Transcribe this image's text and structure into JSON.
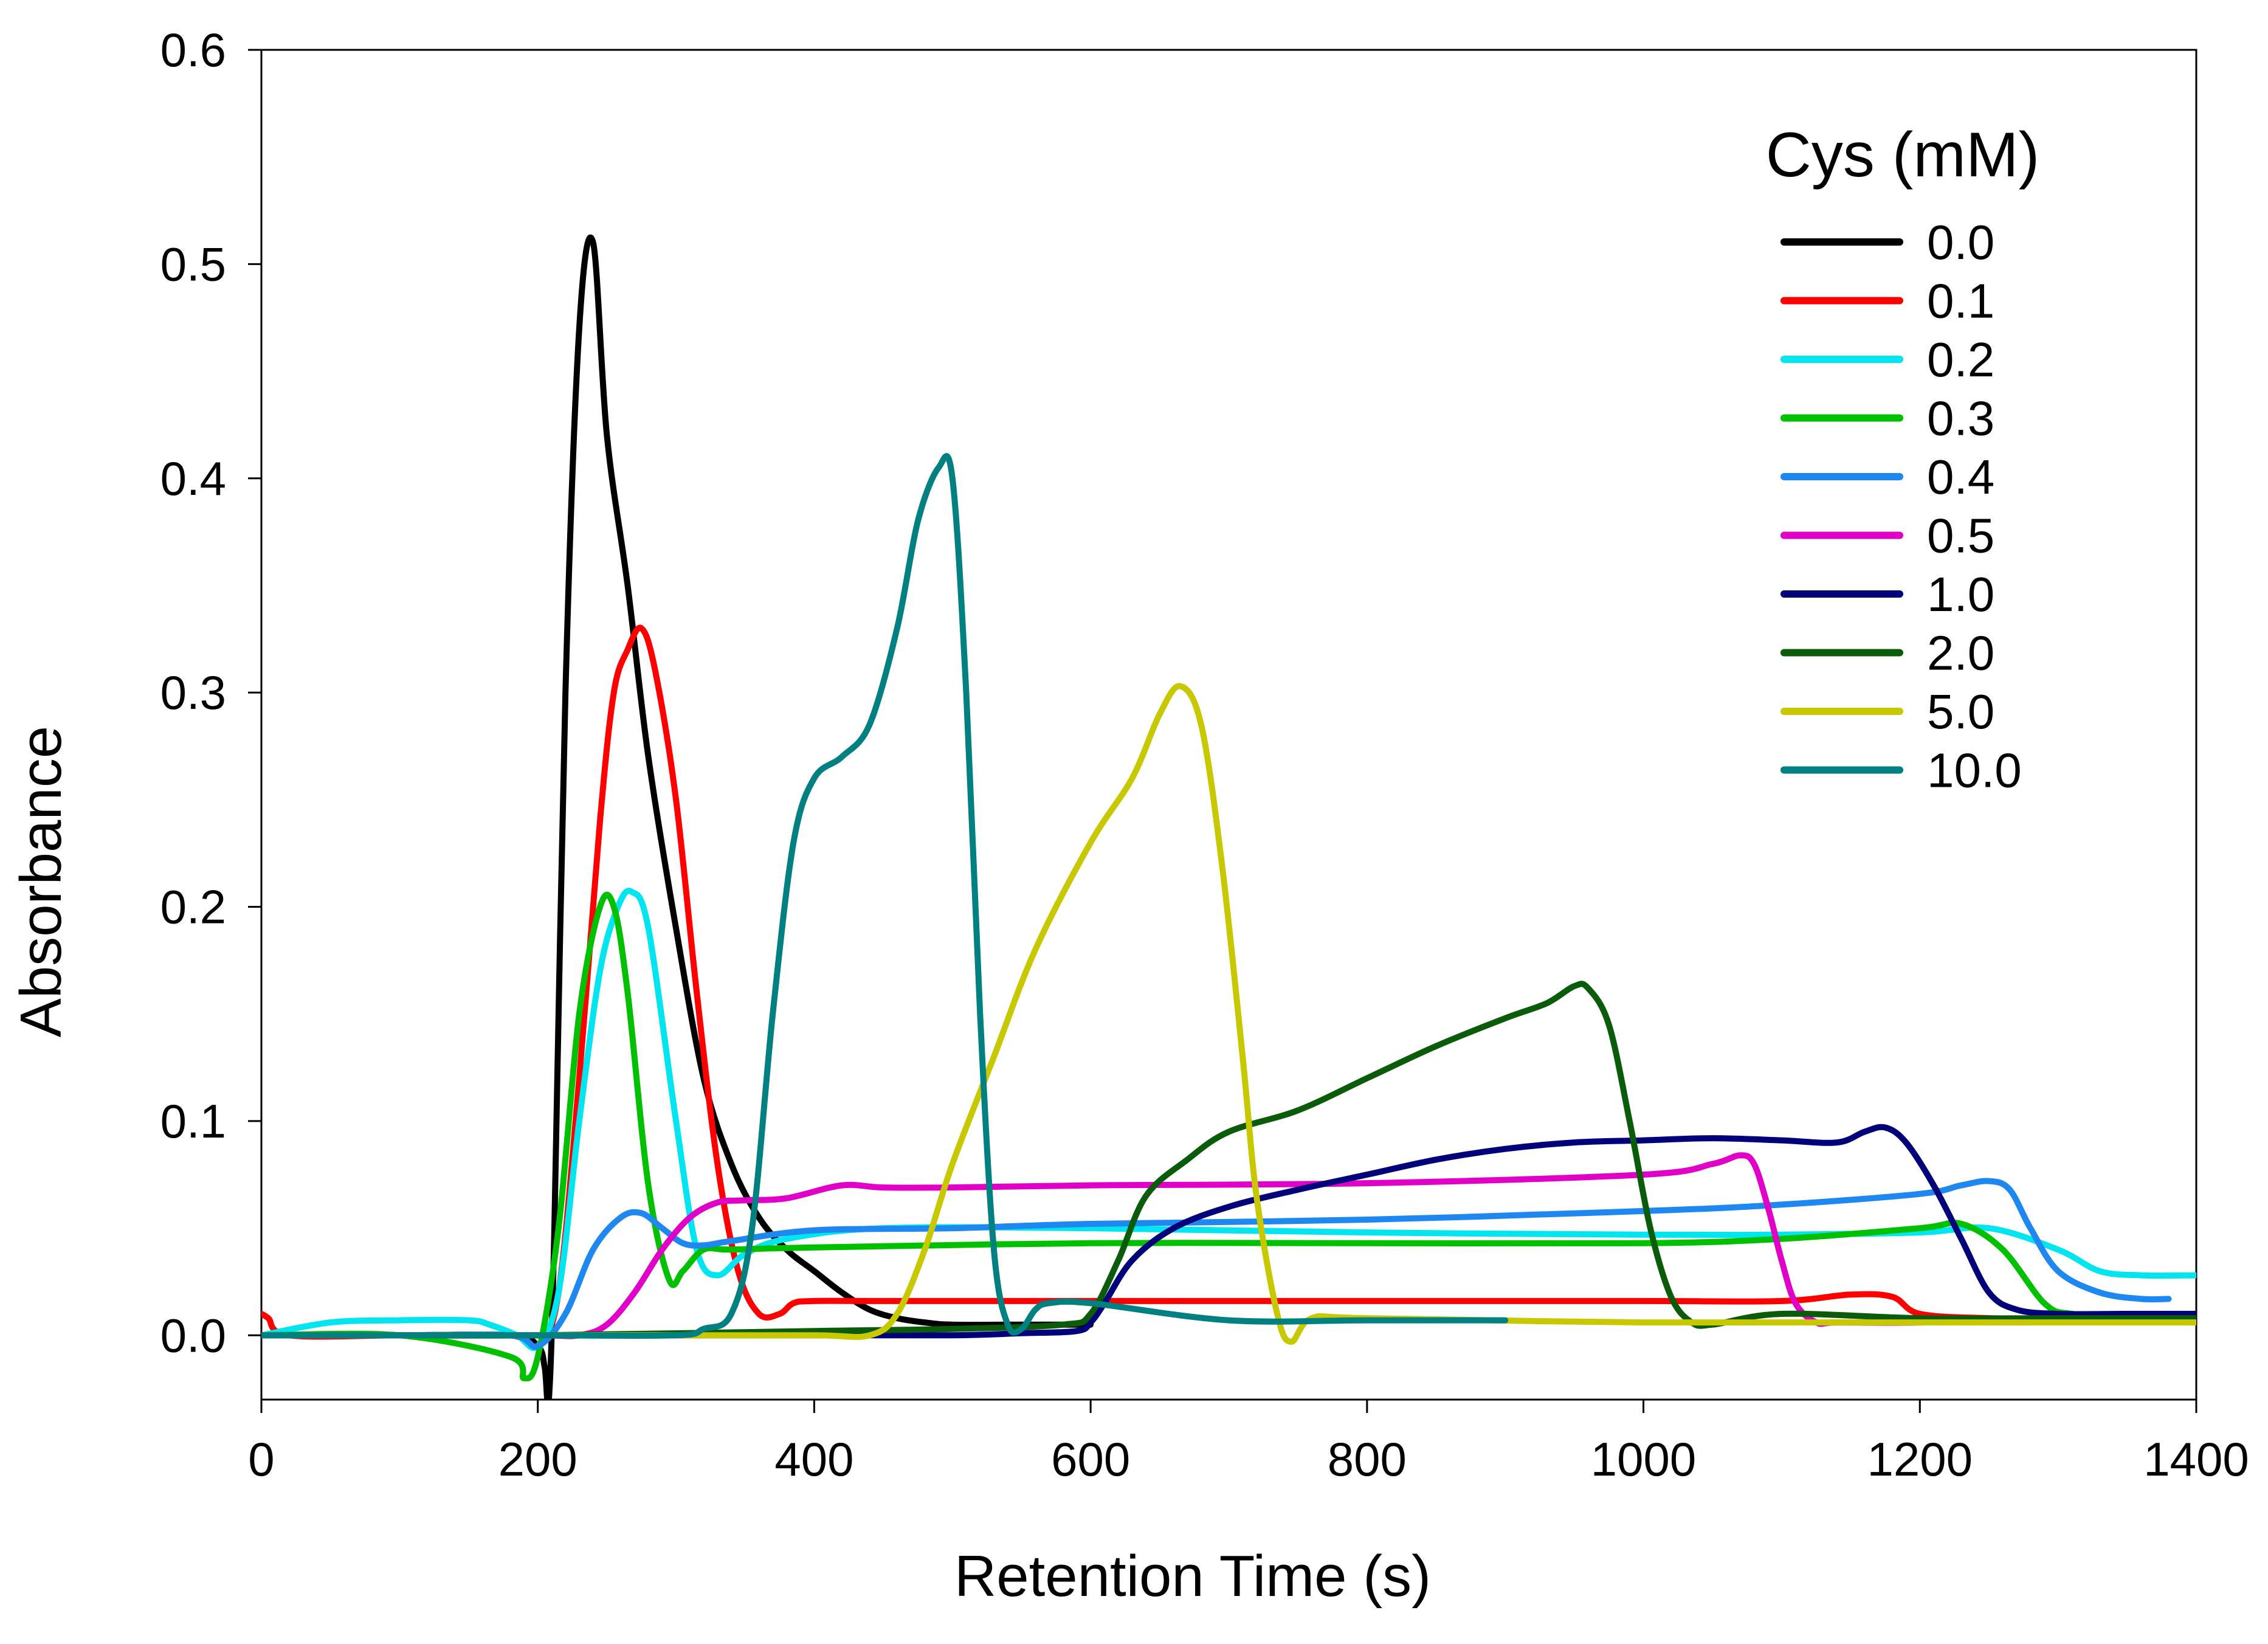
{
  "chart_data": {
    "type": "line",
    "title": "",
    "xlabel": "Retention Time (s)",
    "ylabel": "Absorbance",
    "xlim": [
      0,
      1400
    ],
    "ylim": [
      -0.03,
      0.6
    ],
    "xticks": [
      0,
      200,
      400,
      600,
      800,
      1000,
      1200,
      1400
    ],
    "xtick_labels": [
      "0",
      "200",
      "400",
      "600",
      "800",
      "1000",
      "1200",
      "1400"
    ],
    "yticks": [
      0.0,
      0.1,
      0.2,
      0.3,
      0.4,
      0.5,
      0.6
    ],
    "ytick_labels": [
      "0.0",
      "0.1",
      "0.2",
      "0.3",
      "0.4",
      "0.5",
      "0.6"
    ],
    "grid": false,
    "legend": {
      "title": "Cys (mM)",
      "position": "top-right"
    },
    "series": [
      {
        "name": "0.0",
        "color": "#000000",
        "x": [
          0,
          100,
          180,
          200,
          205,
          208,
          212,
          220,
          230,
          240,
          250,
          265,
          280,
          300,
          320,
          340,
          360,
          380,
          400,
          420,
          440,
          460,
          480,
          500,
          550,
          600
        ],
        "y": [
          0.0,
          0.0,
          0.0,
          -0.005,
          -0.015,
          -0.03,
          0.05,
          0.3,
          0.47,
          0.51,
          0.42,
          0.35,
          0.27,
          0.19,
          0.12,
          0.08,
          0.055,
          0.04,
          0.03,
          0.02,
          0.012,
          0.008,
          0.006,
          0.005,
          0.005,
          0.005
        ]
      },
      {
        "name": "0.1",
        "color": "#ff0000",
        "x": [
          0,
          5,
          20,
          100,
          180,
          200,
          215,
          230,
          245,
          255,
          265,
          275,
          285,
          300,
          315,
          330,
          345,
          360,
          375,
          385,
          400,
          450,
          600,
          800,
          1000,
          1100,
          1150,
          1180,
          1200,
          1250,
          1300,
          1350,
          1400
        ],
        "y": [
          0.01,
          0.008,
          0.0,
          0.0,
          0.0,
          -0.005,
          0.02,
          0.12,
          0.24,
          0.3,
          0.32,
          0.33,
          0.31,
          0.25,
          0.16,
          0.08,
          0.03,
          0.01,
          0.01,
          0.015,
          0.016,
          0.016,
          0.016,
          0.016,
          0.016,
          0.016,
          0.019,
          0.018,
          0.01,
          0.008,
          0.008,
          0.008,
          0.008
        ]
      },
      {
        "name": "0.2",
        "color": "#00e5f0",
        "x": [
          0,
          50,
          100,
          150,
          165,
          185,
          200,
          215,
          230,
          245,
          258,
          268,
          280,
          300,
          315,
          330,
          350,
          380,
          450,
          600,
          800,
          1000,
          1100,
          1200,
          1250,
          1300,
          1330,
          1360,
          1400
        ],
        "y": [
          0.0,
          0.006,
          0.007,
          0.007,
          0.005,
          0.0,
          -0.005,
          0.02,
          0.1,
          0.17,
          0.2,
          0.207,
          0.19,
          0.1,
          0.04,
          0.028,
          0.038,
          0.045,
          0.05,
          0.05,
          0.048,
          0.047,
          0.047,
          0.048,
          0.05,
          0.04,
          0.03,
          0.028,
          0.028
        ]
      },
      {
        "name": "0.3",
        "color": "#00c000",
        "x": [
          0,
          100,
          180,
          190,
          200,
          215,
          230,
          245,
          255,
          265,
          280,
          295,
          305,
          320,
          340,
          400,
          600,
          800,
          1000,
          1100,
          1200,
          1230,
          1260,
          1290,
          1310,
          1350,
          1400
        ],
        "y": [
          0.0,
          0.0,
          -0.01,
          -0.02,
          -0.01,
          0.05,
          0.15,
          0.2,
          0.2,
          0.16,
          0.07,
          0.026,
          0.03,
          0.04,
          0.04,
          0.041,
          0.043,
          0.043,
          0.043,
          0.045,
          0.05,
          0.052,
          0.04,
          0.015,
          0.01,
          0.01,
          0.01
        ]
      },
      {
        "name": "0.4",
        "color": "#1e88f0",
        "x": [
          0,
          100,
          180,
          200,
          220,
          240,
          260,
          275,
          290,
          305,
          320,
          340,
          400,
          500,
          600,
          800,
          1000,
          1100,
          1200,
          1230,
          1250,
          1265,
          1280,
          1300,
          1330,
          1360,
          1380
        ],
        "y": [
          0.0,
          0.0,
          0.0,
          -0.005,
          0.01,
          0.04,
          0.055,
          0.057,
          0.05,
          0.043,
          0.042,
          0.044,
          0.049,
          0.05,
          0.052,
          0.054,
          0.058,
          0.061,
          0.066,
          0.07,
          0.072,
          0.068,
          0.05,
          0.03,
          0.02,
          0.017,
          0.017
        ]
      },
      {
        "name": "0.5",
        "color": "#e000c8",
        "x": [
          0,
          100,
          200,
          230,
          250,
          270,
          290,
          310,
          330,
          350,
          380,
          420,
          450,
          500,
          600,
          800,
          1000,
          1050,
          1070,
          1080,
          1090,
          1100,
          1110,
          1125,
          1140,
          1200,
          1300,
          1400
        ],
        "y": [
          0.0,
          0.0,
          0.0,
          0.0,
          0.005,
          0.02,
          0.04,
          0.055,
          0.062,
          0.063,
          0.064,
          0.07,
          0.069,
          0.069,
          0.07,
          0.071,
          0.075,
          0.08,
          0.084,
          0.08,
          0.06,
          0.035,
          0.015,
          0.006,
          0.006,
          0.006,
          0.008,
          0.008
        ]
      },
      {
        "name": "1.0",
        "color": "#00007a",
        "x": [
          0,
          100,
          200,
          400,
          500,
          550,
          590,
          600,
          610,
          630,
          660,
          700,
          750,
          800,
          850,
          900,
          950,
          1000,
          1050,
          1100,
          1140,
          1160,
          1175,
          1190,
          1210,
          1230,
          1250,
          1270,
          1300,
          1350,
          1400
        ],
        "y": [
          0.0,
          0.0,
          0.0,
          0.0,
          0.0,
          0.001,
          0.002,
          0.006,
          0.015,
          0.035,
          0.05,
          0.06,
          0.068,
          0.075,
          0.082,
          0.087,
          0.09,
          0.091,
          0.092,
          0.091,
          0.09,
          0.095,
          0.097,
          0.09,
          0.07,
          0.045,
          0.02,
          0.012,
          0.01,
          0.01,
          0.01
        ]
      },
      {
        "name": "2.0",
        "color": "#0a5c0a",
        "x": [
          0,
          100,
          200,
          400,
          500,
          580,
          600,
          620,
          640,
          670,
          700,
          750,
          800,
          850,
          900,
          930,
          950,
          960,
          975,
          990,
          1005,
          1020,
          1035,
          1050,
          1100,
          1200,
          1300,
          1400
        ],
        "y": [
          0.0,
          0.0,
          0.0,
          0.002,
          0.003,
          0.005,
          0.01,
          0.035,
          0.065,
          0.082,
          0.095,
          0.105,
          0.12,
          0.135,
          0.148,
          0.155,
          0.163,
          0.162,
          0.145,
          0.1,
          0.05,
          0.018,
          0.006,
          0.005,
          0.01,
          0.008,
          0.008,
          0.008
        ]
      },
      {
        "name": "5.0",
        "color": "#c8c800",
        "x": [
          0,
          100,
          200,
          300,
          400,
          440,
          460,
          480,
          500,
          530,
          560,
          600,
          630,
          650,
          665,
          680,
          695,
          710,
          720,
          735,
          745,
          760,
          800,
          1000,
          1200,
          1400
        ],
        "y": [
          0.0,
          0.0,
          0.0,
          0.0,
          0.0,
          0.0,
          0.01,
          0.04,
          0.08,
          0.13,
          0.18,
          0.23,
          0.26,
          0.29,
          0.303,
          0.285,
          0.22,
          0.13,
          0.065,
          0.01,
          -0.003,
          0.008,
          0.008,
          0.006,
          0.006,
          0.006
        ]
      },
      {
        "name": "10.0",
        "color": "#008080",
        "x": [
          0,
          100,
          200,
          300,
          320,
          340,
          355,
          370,
          385,
          400,
          420,
          440,
          460,
          475,
          490,
          500,
          510,
          520,
          530,
          540,
          550,
          560,
          570,
          600,
          700,
          800,
          900
        ],
        "y": [
          0.0,
          0.0,
          0.0,
          0.0,
          0.003,
          0.01,
          0.05,
          0.15,
          0.23,
          0.26,
          0.27,
          0.285,
          0.33,
          0.38,
          0.405,
          0.4,
          0.3,
          0.15,
          0.04,
          0.005,
          0.003,
          0.012,
          0.015,
          0.015,
          0.007,
          0.007,
          0.007
        ]
      }
    ]
  }
}
